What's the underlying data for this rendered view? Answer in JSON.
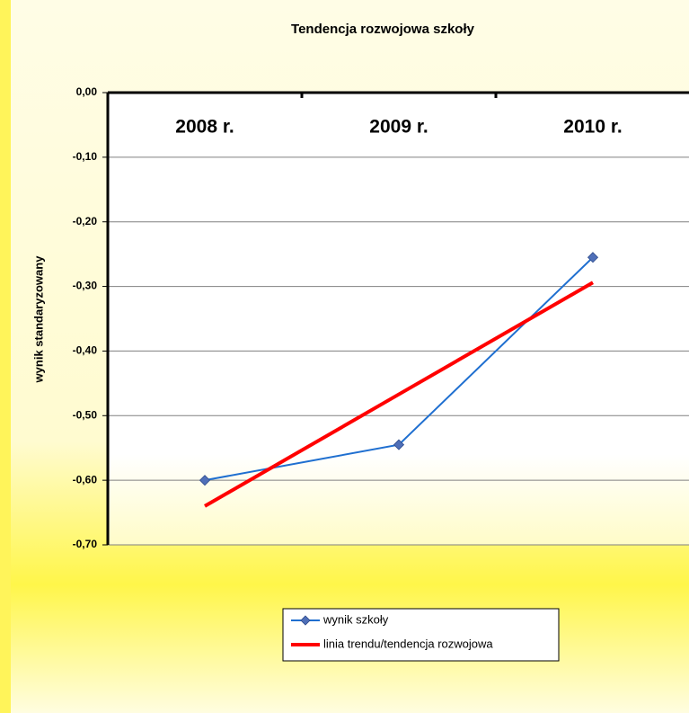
{
  "chart_data": {
    "type": "line",
    "title": "Tendencja rozwojowa szkoły",
    "y_label": "wynik standaryzowany",
    "categories": [
      "2008 r.",
      "2009 r.",
      "2010 r."
    ],
    "series": [
      {
        "name": "wynik szkoły",
        "color": "#1f6fd0",
        "marker": "diamond",
        "marker_color": "#4f6fb8",
        "width": 2,
        "values": [
          -0.6,
          -0.545,
          -0.255
        ]
      },
      {
        "name": "linia trendu/tendencja rozwojowa",
        "color": "#ff0000",
        "width": 4,
        "values": [
          -0.64,
          -0.467,
          -0.294
        ]
      }
    ],
    "ylim": [
      -0.7,
      0
    ],
    "yticks": [
      {
        "value": 0,
        "label": "0,00"
      },
      {
        "value": -0.1,
        "label": "-0,10"
      },
      {
        "value": -0.2,
        "label": "-0,20"
      },
      {
        "value": -0.3,
        "label": "-0,30"
      },
      {
        "value": -0.4,
        "label": "-0,40"
      },
      {
        "value": -0.5,
        "label": "-0,50"
      },
      {
        "value": -0.6,
        "label": "-0,60"
      },
      {
        "value": -0.7,
        "label": "-0,70"
      }
    ],
    "grid": true
  }
}
